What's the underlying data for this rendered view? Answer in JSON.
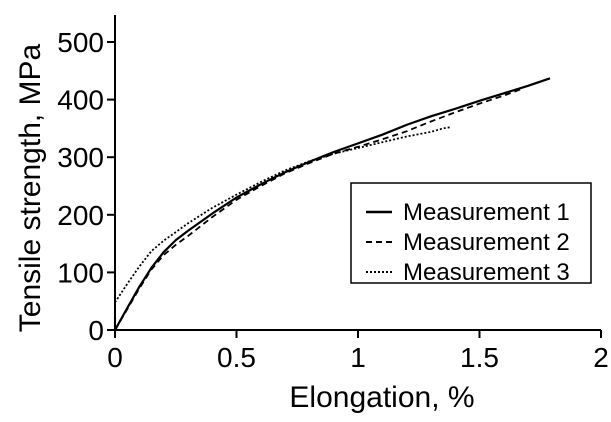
{
  "chart_data": {
    "type": "line",
    "title": "",
    "xlabel": "Elongation, %",
    "ylabel": "Tensile strength, MPa",
    "xlim": [
      0,
      2
    ],
    "ylim": [
      0,
      500
    ],
    "x_ticks": [
      0,
      0.5,
      1,
      1.5,
      2
    ],
    "x_tick_labels": [
      "0",
      "0.5",
      "1",
      "1.5",
      "2"
    ],
    "y_ticks": [
      0,
      100,
      200,
      300,
      400,
      500
    ],
    "y_tick_labels": [
      "0",
      "100",
      "200",
      "300",
      "400",
      "500"
    ],
    "grid": false,
    "legend_position": "right",
    "series": [
      {
        "name": "Measurement 1",
        "line_style": "solid",
        "color": "#000000",
        "x": [
          0,
          0.05,
          0.1,
          0.15,
          0.2,
          0.25,
          0.3,
          0.4,
          0.5,
          0.6,
          0.7,
          0.8,
          0.9,
          1.0,
          1.1,
          1.2,
          1.3,
          1.4,
          1.5,
          1.6,
          1.7,
          1.79
        ],
        "y": [
          0,
          38,
          75,
          108,
          135,
          156,
          172,
          202,
          230,
          253,
          274,
          292,
          309,
          324,
          339,
          356,
          371,
          384,
          398,
          411,
          424,
          437
        ]
      },
      {
        "name": "Measurement 2",
        "line_style": "dashed",
        "color": "#000000",
        "x": [
          0,
          0.05,
          0.1,
          0.15,
          0.2,
          0.25,
          0.3,
          0.4,
          0.5,
          0.6,
          0.7,
          0.8,
          0.9,
          1.0,
          1.1,
          1.2,
          1.3,
          1.4,
          1.5,
          1.6,
          1.67
        ],
        "y": [
          0,
          36,
          72,
          105,
          130,
          148,
          163,
          196,
          226,
          250,
          272,
          290,
          306,
          318,
          331,
          345,
          362,
          378,
          393,
          407,
          418
        ]
      },
      {
        "name": "Measurement 3",
        "line_style": "dotted",
        "color": "#000000",
        "x": [
          0,
          0.05,
          0.1,
          0.15,
          0.2,
          0.25,
          0.3,
          0.4,
          0.5,
          0.6,
          0.7,
          0.8,
          0.9,
          1.0,
          1.1,
          1.2,
          1.25,
          1.3,
          1.35,
          1.38
        ],
        "y": [
          48,
          80,
          110,
          137,
          155,
          170,
          185,
          212,
          235,
          257,
          277,
          293,
          306,
          316,
          326,
          336,
          340,
          344,
          350,
          352
        ]
      }
    ]
  }
}
